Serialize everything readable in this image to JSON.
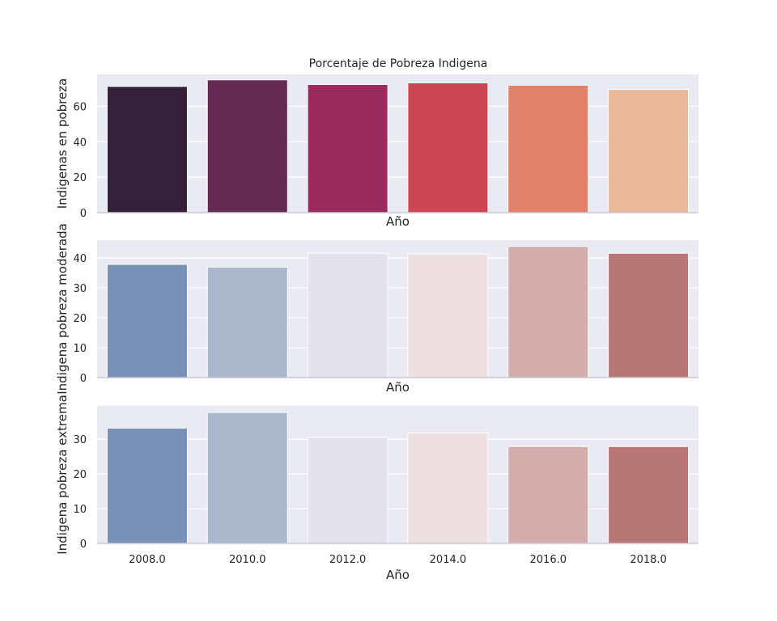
{
  "chart_data": [
    {
      "type": "bar",
      "title": "Porcentaje de Pobreza Indigena",
      "xlabel": "Año",
      "ylabel": "Indigenas en pobreza",
      "categories": [
        "2008.0",
        "2010.0",
        "2012.0",
        "2014.0",
        "2016.0",
        "2018.0"
      ],
      "values": [
        71.2,
        74.9,
        72.3,
        73.2,
        71.9,
        69.5
      ],
      "ylim": [
        0,
        78
      ],
      "yticks": [
        0,
        20,
        40,
        60
      ],
      "show_xticklabels": false,
      "grid": true,
      "colors": [
        "#35203a",
        "#652a52",
        "#9a2b5c",
        "#cc4653",
        "#e2826a",
        "#eab89a"
      ]
    },
    {
      "type": "bar",
      "xlabel": "Año",
      "ylabel": "Indigena pobreza moderada",
      "categories": [
        "2008.0",
        "2010.0",
        "2012.0",
        "2014.0",
        "2016.0",
        "2018.0"
      ],
      "values": [
        37.9,
        37.0,
        41.6,
        41.4,
        43.9,
        41.6
      ],
      "ylim": [
        0,
        46
      ],
      "yticks": [
        0,
        10,
        20,
        30,
        40
      ],
      "show_xticklabels": false,
      "grid": true,
      "colors": [
        "#7892b7",
        "#abb8cb",
        "#e4e3eb",
        "#eee0e0",
        "#d3acac",
        "#b87777"
      ]
    },
    {
      "type": "bar",
      "xlabel": "Año",
      "ylabel": "Indigena pobreza extrema",
      "categories": [
        "2008.0",
        "2010.0",
        "2012.0",
        "2014.0",
        "2016.0",
        "2018.0"
      ],
      "values": [
        33.2,
        37.7,
        30.6,
        31.8,
        27.9,
        27.9
      ],
      "ylim": [
        0,
        39.6
      ],
      "yticks": [
        0,
        10,
        20,
        30
      ],
      "show_xticklabels": true,
      "grid": true,
      "colors": [
        "#7892b7",
        "#abb8cb",
        "#e4e3eb",
        "#eee0e0",
        "#d3acac",
        "#b87777"
      ]
    }
  ]
}
